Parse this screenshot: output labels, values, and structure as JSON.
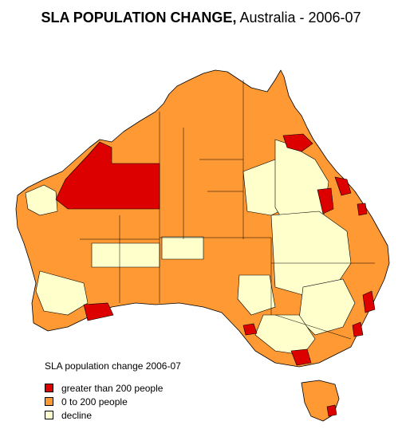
{
  "title": {
    "bold_part": "SLA POPULATION CHANGE,",
    "regular_part": " Australia - ",
    "bold_year": "2006-07"
  },
  "colors": {
    "high": "#dd0000",
    "mid": "#ff9933",
    "decline": "#ffffcc",
    "border": "#000000"
  },
  "legend": {
    "title": "SLA population change 2006-07",
    "items": [
      {
        "label": "greater than 200 people",
        "color": "#dd0000"
      },
      {
        "label": "0 to 200 people",
        "color": "#ff9933"
      },
      {
        "label": "decline",
        "color": "#ffffcc"
      }
    ]
  }
}
